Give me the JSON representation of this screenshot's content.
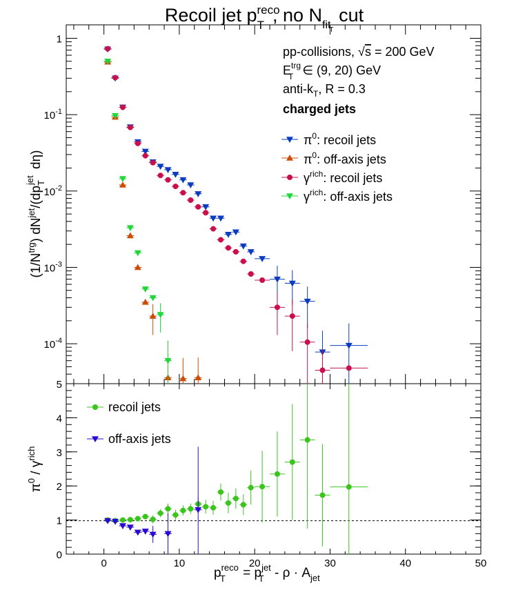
{
  "title": {
    "main": "Recoil jet p",
    "sup": "reco",
    "sub": "T",
    "rest": ", no N",
    "sub2": "fit",
    "sub3": "T",
    "tail": " cut"
  },
  "top_panel": {
    "ylabel": "(1/N^trg) dN^jet/(dp_T^jet dη)",
    "annotations": [
      "pp-collisions, √s = 200 GeV",
      "E_T^trg ∈ (9, 20) GeV",
      "anti-k_T, R = 0.3",
      "charged jets"
    ],
    "legend": [
      "π0: recoil jets",
      "π0: off-axis jets",
      "γrich: recoil jets",
      "γrich: off-axis jets"
    ]
  },
  "bottom_panel": {
    "ylabel": "π0 / γrich",
    "legend": [
      "recoil jets",
      "off-axis jets"
    ]
  },
  "xlabel": "p_T^reco = p_T^jet - ρ · A_jet",
  "chart_data": [
    {
      "type": "scatter",
      "title": "Recoil jet p_T^reco, no N_fit_T cut",
      "xlabel": "p_T^reco = p_T^jet - ρ · A_jet",
      "ylabel": "(1/N^trg) dN^jet/(dp_T^jet dη)",
      "xlim": [
        -5,
        50
      ],
      "ylim": [
        3e-05,
        1.5
      ],
      "yscale": "log",
      "x_ticks": [
        0,
        10,
        20,
        30,
        40,
        50
      ],
      "x_tick_labels": [
        "0",
        "10",
        "20",
        "30",
        "40",
        "50"
      ],
      "y_ticks": [
        0.0001,
        0.001,
        0.01,
        0.1,
        1
      ],
      "y_tick_labels": [
        "10^-4",
        "10^-3",
        "10^-2",
        "10^-1",
        "1"
      ],
      "series": [
        {
          "name": "π0: recoil jets",
          "color": "#0b3bbf",
          "marker": "triangle-down",
          "points": [
            {
              "x": 0.5,
              "y": 0.72
            },
            {
              "x": 1.5,
              "y": 0.3
            },
            {
              "x": 2.5,
              "y": 0.125
            },
            {
              "x": 3.5,
              "y": 0.069
            },
            {
              "x": 4.5,
              "y": 0.044
            },
            {
              "x": 5.5,
              "y": 0.033
            },
            {
              "x": 6.5,
              "y": 0.024
            },
            {
              "x": 7.5,
              "y": 0.021
            },
            {
              "x": 8.5,
              "y": 0.019
            },
            {
              "x": 9.5,
              "y": 0.0165
            },
            {
              "x": 10.5,
              "y": 0.014
            },
            {
              "x": 11.5,
              "y": 0.012
            },
            {
              "x": 12.5,
              "y": 0.0092
            },
            {
              "x": 13.5,
              "y": 0.0062
            },
            {
              "x": 14.5,
              "y": 0.0044
            },
            {
              "x": 15.5,
              "y": 0.0044
            },
            {
              "x": 16.5,
              "y": 0.0027
            },
            {
              "x": 17.5,
              "y": 0.0029
            },
            {
              "x": 18.5,
              "y": 0.0019
            },
            {
              "x": 19.5,
              "y": 0.0016
            },
            {
              "x": 21.0,
              "y": 0.0013,
              "xerr": 1.0
            },
            {
              "x": 23.0,
              "y": 0.0007,
              "xerr": 1.0,
              "yerr": 0.00035
            },
            {
              "x": 25.0,
              "y": 0.00062,
              "xerr": 1.0,
              "yerr": 0.0003
            },
            {
              "x": 27.0,
              "y": 0.00036,
              "xerr": 1.0,
              "yerr": 0.0002
            },
            {
              "x": 29.0,
              "y": 7.8e-05,
              "xerr": 1.0,
              "yerr": 7e-05
            },
            {
              "x": 32.5,
              "y": 9.5e-05,
              "xerr": 2.5,
              "yerr": 9e-05
            }
          ]
        },
        {
          "name": "π0: off-axis jets",
          "color": "#cc4c06",
          "marker": "triangle-up",
          "points": [
            {
              "x": 0.5,
              "y": 0.49
            },
            {
              "x": 1.5,
              "y": 0.093
            },
            {
              "x": 2.5,
              "y": 0.012
            },
            {
              "x": 3.5,
              "y": 0.0026
            },
            {
              "x": 4.5,
              "y": 0.001
            },
            {
              "x": 5.5,
              "y": 0.00035
            },
            {
              "x": 6.5,
              "y": 0.00023,
              "yerr": 0.0001
            },
            {
              "x": 8.5,
              "y": 3.6e-05,
              "yerr": 4e-05
            },
            {
              "x": 10.5,
              "y": 3.5e-05,
              "yerr": 3e-05
            },
            {
              "x": 12.5,
              "y": 3.6e-05,
              "yerr": 3e-05
            }
          ]
        },
        {
          "name": "γrich: recoil jets",
          "color": "#c8104c",
          "marker": "circle",
          "points": [
            {
              "x": 0.5,
              "y": 0.73
            },
            {
              "x": 1.5,
              "y": 0.305
            },
            {
              "x": 2.5,
              "y": 0.125
            },
            {
              "x": 3.5,
              "y": 0.068
            },
            {
              "x": 4.5,
              "y": 0.042
            },
            {
              "x": 5.5,
              "y": 0.029
            },
            {
              "x": 6.5,
              "y": 0.0235
            },
            {
              "x": 7.5,
              "y": 0.016
            },
            {
              "x": 8.5,
              "y": 0.014
            },
            {
              "x": 9.5,
              "y": 0.0115
            },
            {
              "x": 10.5,
              "y": 0.0095
            },
            {
              "x": 11.5,
              "y": 0.0076
            },
            {
              "x": 12.5,
              "y": 0.0062
            },
            {
              "x": 13.5,
              "y": 0.0052
            },
            {
              "x": 14.5,
              "y": 0.0032
            },
            {
              "x": 15.5,
              "y": 0.0023
            },
            {
              "x": 16.5,
              "y": 0.0018
            },
            {
              "x": 17.5,
              "y": 0.0016
            },
            {
              "x": 18.5,
              "y": 0.0012
            },
            {
              "x": 19.5,
              "y": 0.00082
            },
            {
              "x": 21.0,
              "y": 0.00068,
              "xerr": 1.0
            },
            {
              "x": 23.0,
              "y": 0.0003,
              "xerr": 1.0,
              "yerr": 0.00017
            },
            {
              "x": 25.0,
              "y": 0.00023,
              "xerr": 1.0,
              "yerr": 0.00015
            },
            {
              "x": 27.0,
              "y": 0.000105,
              "xerr": 1.0,
              "yerr": 8e-05
            },
            {
              "x": 29.0,
              "y": 4.5e-05,
              "xerr": 1.0,
              "yerr": 4e-05
            },
            {
              "x": 32.5,
              "y": 4.8e-05,
              "xerr": 2.5
            }
          ]
        },
        {
          "name": "γrich: off-axis jets",
          "color": "#21d63a",
          "marker": "triangle-down",
          "points": [
            {
              "x": 0.5,
              "y": 0.5
            },
            {
              "x": 1.5,
              "y": 0.097
            },
            {
              "x": 2.5,
              "y": 0.0145
            },
            {
              "x": 3.5,
              "y": 0.0033
            },
            {
              "x": 4.5,
              "y": 0.00155
            },
            {
              "x": 5.5,
              "y": 0.00052
            },
            {
              "x": 6.5,
              "y": 0.0004
            },
            {
              "x": 7.5,
              "y": 0.00024,
              "yerr": 0.0001
            },
            {
              "x": 8.5,
              "y": 6e-05,
              "yerr": 5e-05
            }
          ]
        }
      ]
    },
    {
      "type": "scatter",
      "xlabel": "p_T^reco = p_T^jet - ρ · A_jet",
      "ylabel": "π0 / γrich",
      "xlim": [
        -5,
        50
      ],
      "ylim": [
        0,
        5
      ],
      "x_ticks": [
        0,
        10,
        20,
        30,
        40,
        50
      ],
      "y_ticks": [
        0,
        1,
        2,
        3,
        4,
        5
      ],
      "reference_line": 1,
      "series": [
        {
          "name": "recoil jets",
          "color": "#3cc41e",
          "marker": "circle",
          "points": [
            {
              "x": 0.5,
              "y": 1.0
            },
            {
              "x": 1.5,
              "y": 0.98
            },
            {
              "x": 2.5,
              "y": 1.0
            },
            {
              "x": 3.5,
              "y": 1.01
            },
            {
              "x": 4.5,
              "y": 1.04
            },
            {
              "x": 5.5,
              "y": 1.1
            },
            {
              "x": 6.5,
              "y": 1.02,
              "yerr": 0.12
            },
            {
              "x": 7.5,
              "y": 1.2,
              "yerr": 0.12
            },
            {
              "x": 8.5,
              "y": 1.33,
              "yerr": 0.15
            },
            {
              "x": 9.5,
              "y": 1.15,
              "yerr": 0.15
            },
            {
              "x": 10.5,
              "y": 1.28,
              "yerr": 0.15
            },
            {
              "x": 11.5,
              "y": 1.33,
              "yerr": 0.15
            },
            {
              "x": 12.5,
              "y": 1.47,
              "yerr": 0.2
            },
            {
              "x": 13.5,
              "y": 1.39,
              "yerr": 0.2
            },
            {
              "x": 14.5,
              "y": 1.36,
              "yerr": 0.2
            },
            {
              "x": 15.5,
              "y": 1.82,
              "yerr": 0.25
            },
            {
              "x": 16.5,
              "y": 1.5,
              "yerr": 0.3
            },
            {
              "x": 17.5,
              "y": 1.63,
              "yerr": 0.3
            },
            {
              "x": 18.5,
              "y": 1.45,
              "yerr": 0.3
            },
            {
              "x": 19.5,
              "y": 1.95,
              "yerr": 0.5
            },
            {
              "x": 21.0,
              "y": 1.98,
              "xerr": 1.0,
              "yerr": 1.05
            },
            {
              "x": 23.0,
              "y": 2.35,
              "xerr": 1.0,
              "yerr": 1.25
            },
            {
              "x": 25.0,
              "y": 2.7,
              "xerr": 1.0,
              "yerr": 1.7
            },
            {
              "x": 27.0,
              "y": 3.35,
              "xerr": 1.0,
              "yerr": 2.6
            },
            {
              "x": 29.0,
              "y": 1.73,
              "xerr": 1.0,
              "yerr": 1.5
            },
            {
              "x": 32.5,
              "y": 1.97,
              "xerr": 2.5,
              "yerr": 3.5
            }
          ]
        },
        {
          "name": "off-axis jets",
          "color": "#2a0ad0",
          "marker": "triangle-down",
          "points": [
            {
              "x": 0.5,
              "y": 0.98
            },
            {
              "x": 1.5,
              "y": 0.96
            },
            {
              "x": 2.5,
              "y": 0.83
            },
            {
              "x": 3.5,
              "y": 0.79
            },
            {
              "x": 4.5,
              "y": 0.64
            },
            {
              "x": 5.5,
              "y": 0.67
            },
            {
              "x": 6.5,
              "y": 0.58,
              "yerr": 0.25
            },
            {
              "x": 8.5,
              "y": 0.6,
              "yerr": 0.6
            },
            {
              "x": 12.5,
              "y": 1.3,
              "yerr": 1.85
            }
          ]
        }
      ]
    }
  ]
}
